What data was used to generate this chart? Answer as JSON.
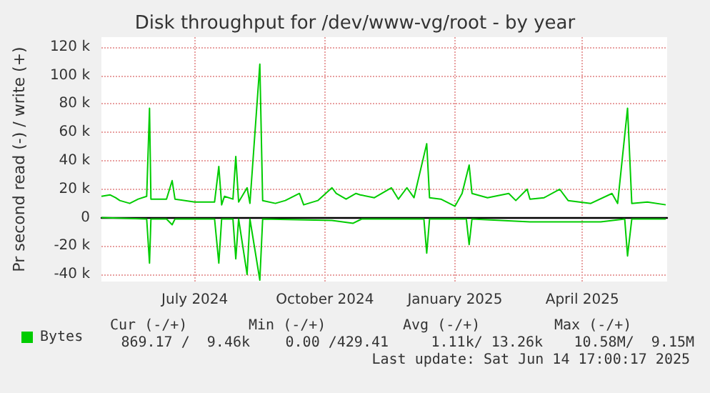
{
  "chart_data": {
    "type": "line",
    "title": "Disk throughput for /dev/www-vg/root - by year",
    "ylabel": "Pr second read (-) / write (+)",
    "xlim": [
      "2024-05-10",
      "2025-06-14"
    ],
    "xticks": [
      {
        "value": "2024-07-15",
        "label": "July 2024"
      },
      {
        "value": "2024-10-15",
        "label": "October 2024"
      },
      {
        "value": "2025-01-15",
        "label": "January 2025"
      },
      {
        "value": "2025-04-15",
        "label": "April 2025"
      }
    ],
    "ylim": [
      -45000,
      127000
    ],
    "yticks": [
      {
        "value": -40000,
        "label": "-40 k"
      },
      {
        "value": -20000,
        "label": "-20 k"
      },
      0,
      {
        "value": 20000,
        "label": "20 k"
      },
      {
        "value": 40000,
        "label": "40 k"
      },
      {
        "value": 60000,
        "label": "60 k"
      },
      {
        "value": 80000,
        "label": "80 k"
      },
      {
        "value": 100000,
        "label": "100 k"
      },
      {
        "value": 120000,
        "label": "120 k"
      }
    ],
    "grid": true,
    "legend": "bottom left",
    "marker": "none",
    "line_style": "solid",
    "series": [
      {
        "color": "#00cc00",
        "x": [
          "2024-05-10",
          "2024-06-11",
          "2024-06-13",
          "2024-06-14",
          "2024-06-25",
          "2024-06-29",
          "2024-07-01",
          "2024-07-29",
          "2024-08-01",
          "2024-08-03",
          "2024-08-11",
          "2024-08-13",
          "2024-08-15",
          "2024-08-21",
          "2024-08-23",
          "2024-08-30",
          "2024-09-01",
          "2024-10-20",
          "2024-11-04",
          "2024-11-10",
          "2024-12-24",
          "2024-12-26",
          "2024-12-28",
          "2025-01-23",
          "2025-01-25",
          "2025-01-27",
          "2025-03-09",
          "2025-04-28",
          "2025-05-15",
          "2025-05-17",
          "2025-05-20",
          "2025-06-13"
        ],
        "values": [
          0,
          -1000,
          -32000,
          -1000,
          -1000,
          -5000,
          -1000,
          -1000,
          -32000,
          -1000,
          -1000,
          -29000,
          -1000,
          -40000,
          -1000,
          -44000,
          -1000,
          -2000,
          -4000,
          -1000,
          -1000,
          -25000,
          -1000,
          -1000,
          -19000,
          -1000,
          -3000,
          -3000,
          -1000,
          -27000,
          -1000,
          -1000
        ]
      },
      {
        "name": "Bytes",
        "color": "#00cc00",
        "x": [
          "2024-05-10",
          "2024-05-16",
          "2024-05-20",
          "2024-05-23",
          "2024-05-30",
          "2024-06-05",
          "2024-06-11",
          "2024-06-13",
          "2024-06-14",
          "2024-06-25",
          "2024-06-29",
          "2024-07-01",
          "2024-07-15",
          "2024-07-29",
          "2024-08-01",
          "2024-08-03",
          "2024-08-05",
          "2024-08-11",
          "2024-08-13",
          "2024-08-15",
          "2024-08-21",
          "2024-08-23",
          "2024-08-30",
          "2024-09-01",
          "2024-09-10",
          "2024-09-17",
          "2024-09-27",
          "2024-09-30",
          "2024-10-10",
          "2024-10-20",
          "2024-10-23",
          "2024-10-30",
          "2024-11-06",
          "2024-11-09",
          "2024-11-19",
          "2024-12-01",
          "2024-12-06",
          "2024-12-12",
          "2024-12-17",
          "2024-12-26",
          "2024-12-28",
          "2025-01-05",
          "2025-01-15",
          "2025-01-20",
          "2025-01-25",
          "2025-01-27",
          "2025-02-07",
          "2025-02-22",
          "2025-02-27",
          "2025-03-07",
          "2025-03-09",
          "2025-03-19",
          "2025-03-30",
          "2025-04-05",
          "2025-04-21",
          "2025-05-06",
          "2025-05-10",
          "2025-05-17",
          "2025-05-20",
          "2025-05-31",
          "2025-06-13"
        ],
        "values": [
          15000,
          16000,
          14000,
          12000,
          10000,
          13000,
          15000,
          77000,
          13000,
          13000,
          26000,
          13000,
          11000,
          11000,
          36000,
          9000,
          15000,
          13000,
          43000,
          11000,
          21000,
          10000,
          108000,
          12000,
          10000,
          12000,
          17000,
          9000,
          12000,
          21000,
          17000,
          13000,
          17000,
          16000,
          14000,
          21000,
          13000,
          21000,
          14000,
          52000,
          14000,
          13000,
          8000,
          17000,
          37000,
          17000,
          14000,
          17000,
          12000,
          20000,
          13000,
          14000,
          20000,
          12000,
          10000,
          17000,
          10000,
          77000,
          10000,
          11000,
          9000
        ]
      }
    ],
    "annotations": [
      "Cur (-/+)",
      "Min (-/+)",
      "Avg (-/+)",
      "Max (-/+)",
      "869.17 /  9.46k",
      "0.00 /429.41",
      "1.11k/ 13.26k",
      "10.58M/  9.15M",
      "Last update: Sat Jun 14 17:00:17 2025"
    ]
  }
}
